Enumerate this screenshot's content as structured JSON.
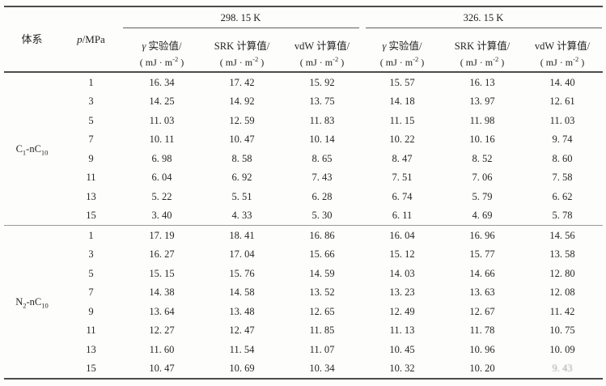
{
  "table": {
    "header": {
      "system": "体系",
      "pressure": {
        "italic": "p",
        "rest": "/MPa"
      },
      "groups": [
        {
          "label": "298. 15 K",
          "columns": [
            {
              "sym": "γ",
              "text": " 实验值/",
              "unit_pre": "( mJ · m",
              "unit_sup": "-2",
              "unit_post": " )"
            },
            {
              "sym": "",
              "text": "SRK 计算值/",
              "unit_pre": "( mJ · m",
              "unit_sup": "-2",
              "unit_post": " )"
            },
            {
              "sym": "",
              "text": "vdW 计算值/",
              "unit_pre": "( mJ · m",
              "unit_sup": "-2",
              "unit_post": " )"
            }
          ]
        },
        {
          "label": "326. 15 K",
          "columns": [
            {
              "sym": "γ",
              "text": " 实验值/",
              "unit_pre": "( mJ · m",
              "unit_sup": "-2",
              "unit_post": " )"
            },
            {
              "sym": "",
              "text": "SRK 计算值/",
              "unit_pre": "( mJ · m",
              "unit_sup": "-2",
              "unit_post": " )"
            },
            {
              "sym": "",
              "text": "vdW 计算值/",
              "unit_pre": "( mJ · m",
              "unit_sup": "-2",
              "unit_post": " )"
            }
          ]
        }
      ]
    },
    "sections": [
      {
        "system": {
          "pre": "C",
          "sub1": "1",
          "mid": "-nC",
          "sub2": "10"
        },
        "rows": [
          {
            "p": "1",
            "values": [
              "16. 34",
              "17. 42",
              "15. 92",
              "15. 57",
              "16. 13",
              "14. 40"
            ]
          },
          {
            "p": "3",
            "values": [
              "14. 25",
              "14. 92",
              "13. 75",
              "14. 18",
              "13. 97",
              "12. 61"
            ]
          },
          {
            "p": "5",
            "values": [
              "11. 03",
              "12. 59",
              "11. 83",
              "11. 15",
              "11. 98",
              "11. 03"
            ]
          },
          {
            "p": "7",
            "values": [
              "10. 11",
              "10. 47",
              "10. 14",
              "10. 22",
              "10. 16",
              "9. 74"
            ]
          },
          {
            "p": "9",
            "values": [
              "6. 98",
              "8. 58",
              "8. 65",
              "8. 47",
              "8. 52",
              "8. 60"
            ]
          },
          {
            "p": "11",
            "values": [
              "6. 04",
              "6. 92",
              "7. 43",
              "7. 51",
              "7. 06",
              "7. 58"
            ]
          },
          {
            "p": "13",
            "values": [
              "5. 22",
              "5. 51",
              "6. 28",
              "6. 74",
              "5. 79",
              "6. 62"
            ]
          },
          {
            "p": "15",
            "values": [
              "3. 40",
              "4. 33",
              "5. 30",
              "6. 11",
              "4. 69",
              "5. 78"
            ]
          }
        ]
      },
      {
        "system": {
          "pre": "N",
          "sub1": "2",
          "mid": "-nC",
          "sub2": "10"
        },
        "rows": [
          {
            "p": "1",
            "values": [
              "17. 19",
              "18. 41",
              "16. 86",
              "16. 04",
              "16. 96",
              "14. 56"
            ]
          },
          {
            "p": "3",
            "values": [
              "16. 27",
              "17. 04",
              "15. 66",
              "15. 12",
              "15. 77",
              "13. 58"
            ]
          },
          {
            "p": "5",
            "values": [
              "15. 15",
              "15. 76",
              "14. 59",
              "14. 03",
              "14. 66",
              "12. 80"
            ]
          },
          {
            "p": "7",
            "values": [
              "14. 38",
              "14. 58",
              "13. 52",
              "13. 23",
              "13. 63",
              "12. 08"
            ]
          },
          {
            "p": "9",
            "values": [
              "13. 64",
              "13. 48",
              "12. 65",
              "12. 49",
              "12. 67",
              "11. 42"
            ]
          },
          {
            "p": "11",
            "values": [
              "12. 27",
              "12. 47",
              "11. 85",
              "11. 13",
              "11. 78",
              "10. 75"
            ]
          },
          {
            "p": "13",
            "values": [
              "11. 60",
              "11. 54",
              "11. 07",
              "10. 45",
              "10. 96",
              "10. 09"
            ]
          },
          {
            "p": "15",
            "values": [
              "10. 47",
              "10. 69",
              "10. 34",
              "10. 32",
              "10. 20",
              "9. 43"
            ]
          }
        ]
      }
    ]
  }
}
